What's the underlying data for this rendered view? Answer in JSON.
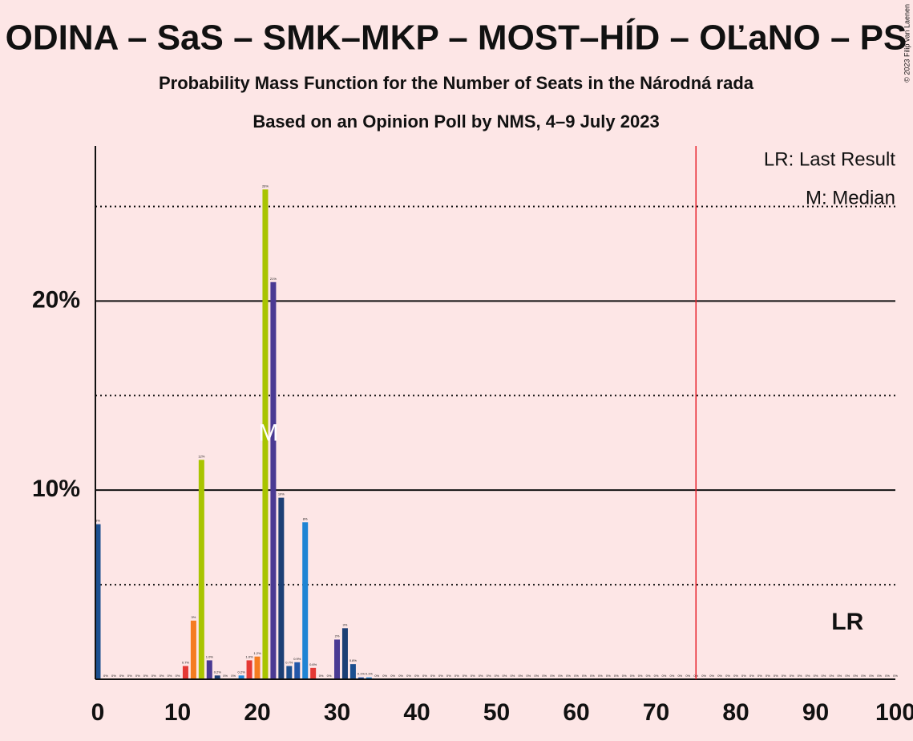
{
  "chart_data": {
    "type": "bar",
    "title": "ODINA – SaS – SMK–MKP – MOST–HÍD – OĽaNO – PS",
    "subtitle": "Probability Mass Function for the Number of Seats in the Národná rada",
    "subtitle2": "Based on an Opinion Poll by NMS, 4–9 July 2023",
    "copyright": "© 2023 Filip van Laenen",
    "legend": [
      "LR: Last Result",
      "M: Median"
    ],
    "x": [
      0,
      1,
      2,
      3,
      4,
      5,
      6,
      7,
      8,
      9,
      10,
      11,
      12,
      13,
      14,
      15,
      16,
      17,
      18,
      19,
      20,
      21,
      22,
      23,
      24,
      25,
      26,
      27,
      28,
      29,
      30,
      31,
      32,
      33,
      34,
      35,
      36,
      37,
      38,
      39,
      40,
      41,
      42,
      43,
      44,
      45,
      46,
      47,
      48,
      49,
      50,
      51,
      52,
      53,
      54,
      55,
      56,
      57,
      58,
      59,
      60,
      61,
      62,
      63,
      64,
      65,
      66,
      67,
      68,
      69,
      70,
      71,
      72,
      73,
      74,
      75,
      76,
      77,
      78,
      79,
      80,
      81,
      82,
      83,
      84,
      85,
      86,
      87,
      88,
      89,
      90,
      91,
      92,
      93,
      94,
      95,
      96,
      97,
      98,
      99,
      100
    ],
    "values": [
      8.2,
      0,
      0,
      0,
      0,
      0,
      0,
      0,
      0,
      0,
      0,
      0.7,
      3.1,
      11.6,
      1.0,
      0.2,
      0,
      0,
      0.2,
      1.0,
      1.2,
      25.9,
      21.0,
      9.6,
      0.7,
      0.9,
      8.3,
      0.6,
      0,
      0,
      2.1,
      2.7,
      0.8,
      0.1,
      0.1,
      0,
      0,
      0,
      0,
      0,
      0,
      0,
      0,
      0,
      0,
      0,
      0,
      0,
      0,
      0,
      0,
      0,
      0,
      0,
      0,
      0,
      0,
      0,
      0,
      0,
      0,
      0,
      0,
      0,
      0,
      0,
      0,
      0,
      0,
      0,
      0,
      0,
      0,
      0,
      0,
      0,
      0,
      0,
      0,
      0,
      0,
      0,
      0,
      0,
      0,
      0,
      0,
      0,
      0,
      0,
      0,
      0,
      0,
      0,
      0,
      0,
      0,
      0,
      0,
      0,
      0
    ],
    "value_labels": [
      "8%",
      "0%",
      "0%",
      "0%",
      "0%",
      "0%",
      "0%",
      "0%",
      "0%",
      "0%",
      "0%",
      "0.7%",
      "3%",
      "12%",
      "1.0%",
      "0.2%",
      "0%",
      "0%",
      "0.2%",
      "1.0%",
      "1.2%",
      "26%",
      "21%",
      "10%",
      "0.7%",
      "0.9%",
      "8%",
      "0.6%",
      "0%",
      "0%",
      "2%",
      "3%",
      "0.8%",
      "0.1%",
      "0.1%",
      "0%",
      "0%",
      "0%",
      "0%",
      "0%",
      "0%",
      "0%",
      "0%",
      "0%",
      "0%",
      "0%",
      "0%",
      "0%",
      "0%",
      "0%",
      "0%",
      "0%",
      "0%",
      "0%",
      "0%",
      "0%",
      "0%",
      "0%",
      "0%",
      "0%",
      "0%",
      "0%",
      "0%",
      "0%",
      "0%",
      "0%",
      "0%",
      "0%",
      "0%",
      "0%",
      "0%",
      "0%",
      "0%",
      "0%",
      "0%",
      "0%",
      "0%",
      "0%",
      "0%",
      "0%",
      "0%",
      "0%",
      "0%",
      "0%",
      "0%",
      "0%",
      "0%",
      "0%",
      "0%",
      "0%",
      "0%",
      "0%",
      "0%",
      "0%",
      "0%",
      "0%",
      "0%",
      "0%",
      "0%",
      "0%",
      "0%"
    ],
    "colors": [
      "#1c4f8f",
      "#2356a8",
      "#1e84d4",
      "#e53935",
      "#f57c20",
      "#a9c400",
      "#4a3a93",
      "#1c3f75"
    ],
    "xlim": [
      0,
      100
    ],
    "xticks": [
      0,
      10,
      20,
      30,
      40,
      50,
      60,
      70,
      80,
      90,
      100
    ],
    "ylim": [
      0,
      28.2
    ],
    "yticks": [
      {
        "value": 10,
        "label": "10%"
      },
      {
        "value": 20,
        "label": "20%"
      }
    ],
    "minor_yticks": [
      5,
      15,
      25
    ],
    "grid": true,
    "median": 21,
    "median_marker": "M",
    "last_result": 75,
    "last_result_marker": "LR"
  }
}
